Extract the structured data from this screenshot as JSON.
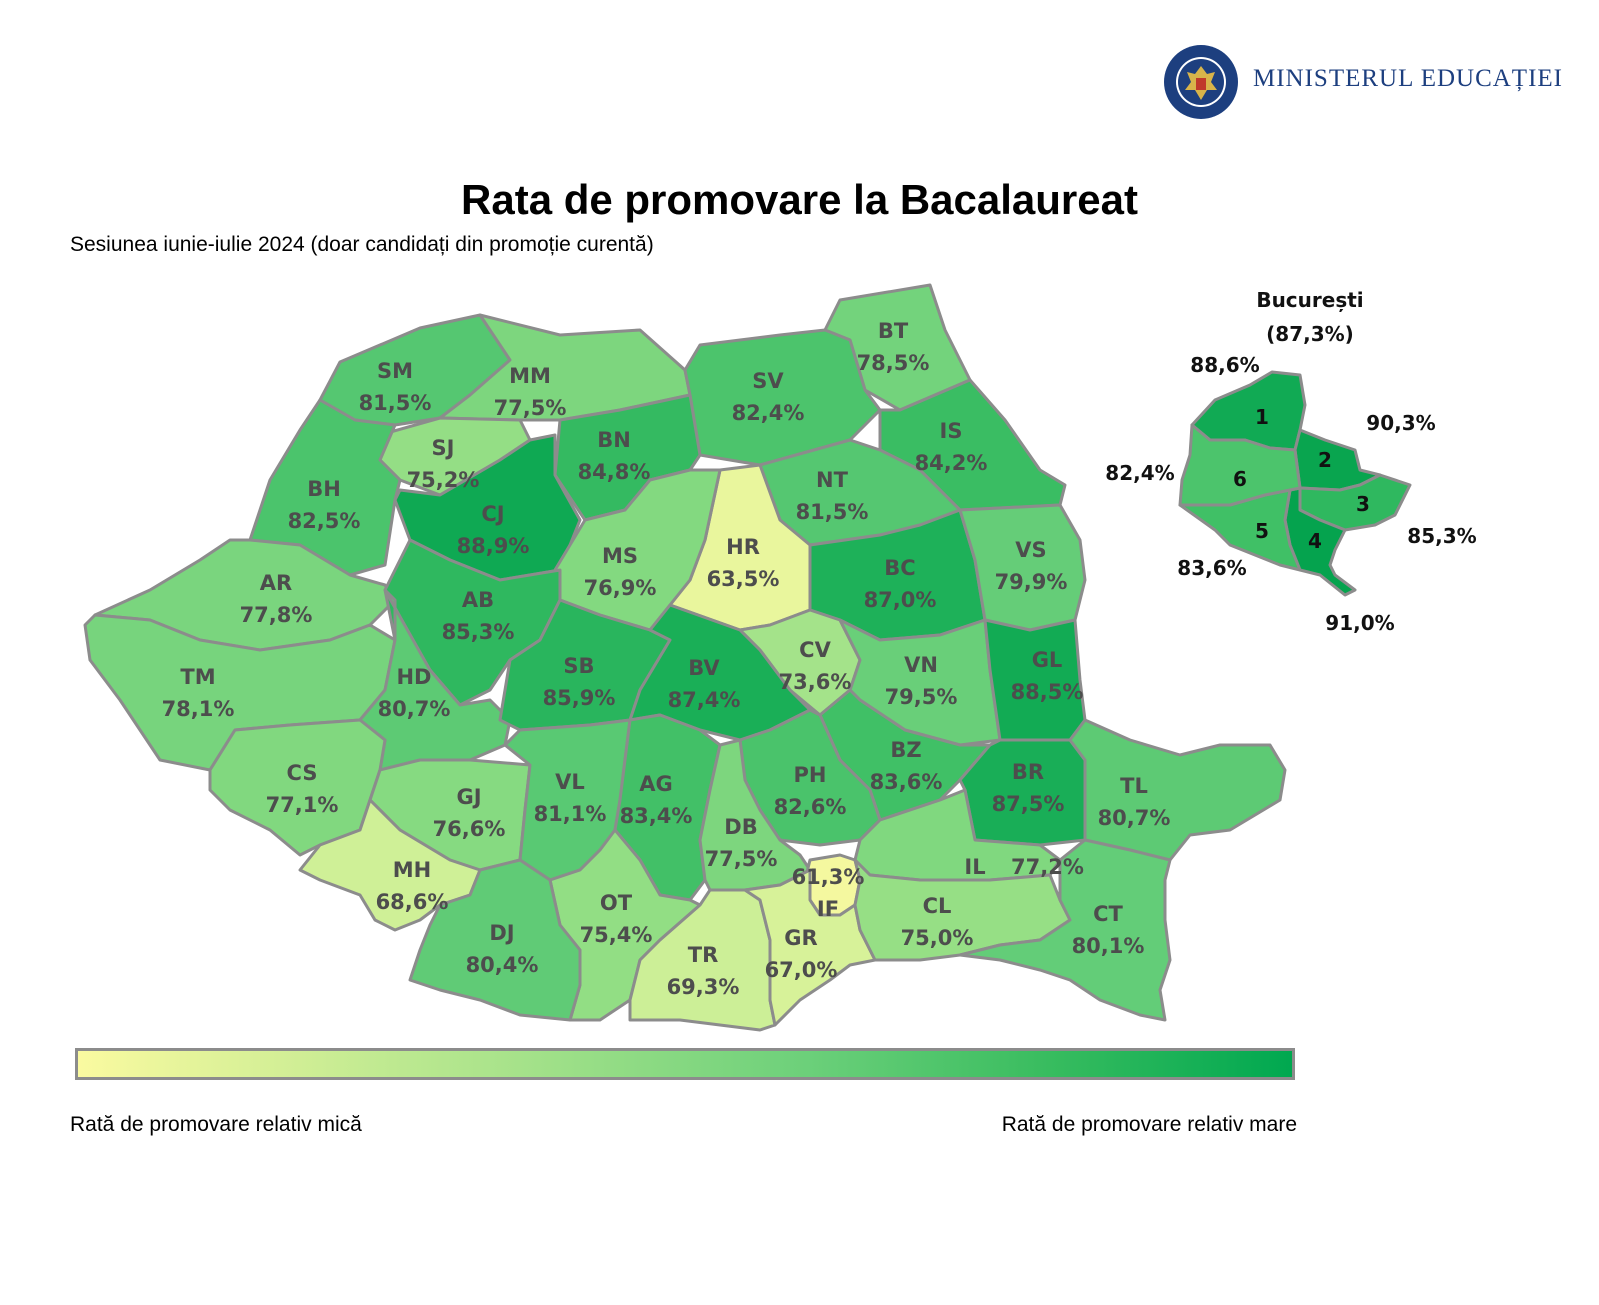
{
  "header": {
    "title": "Rata de promovare la Bacalaureat",
    "subtitle": "Sesiunea iunie-iulie 2024 (doar candidați din promoție curentă)"
  },
  "logo": {
    "text": "MINISTERUL EDUCAȚIEI",
    "seal_text": "GUVERNUL ROMÂNIEI"
  },
  "colors": {
    "low": "#fafaa0",
    "high": "#00a850",
    "border": "#8c8c8c"
  },
  "counties": [
    {
      "code": "SM",
      "value": "81,5%",
      "rate": 81.5
    },
    {
      "code": "MM",
      "value": "77,5%",
      "rate": 77.5
    },
    {
      "code": "BT",
      "value": "78,5%",
      "rate": 78.5
    },
    {
      "code": "SV",
      "value": "82,4%",
      "rate": 82.4
    },
    {
      "code": "SJ",
      "value": "75,2%",
      "rate": 75.2
    },
    {
      "code": "BN",
      "value": "84,8%",
      "rate": 84.8
    },
    {
      "code": "IS",
      "value": "84,2%",
      "rate": 84.2
    },
    {
      "code": "BH",
      "value": "82,5%",
      "rate": 82.5
    },
    {
      "code": "CJ",
      "value": "88,9%",
      "rate": 88.9
    },
    {
      "code": "NT",
      "value": "81,5%",
      "rate": 81.5
    },
    {
      "code": "HR",
      "value": "63,5%",
      "rate": 63.5
    },
    {
      "code": "MS",
      "value": "76,9%",
      "rate": 76.9
    },
    {
      "code": "BC",
      "value": "87,0%",
      "rate": 87.0
    },
    {
      "code": "VS",
      "value": "79,9%",
      "rate": 79.9
    },
    {
      "code": "AR",
      "value": "77,8%",
      "rate": 77.8
    },
    {
      "code": "AB",
      "value": "85,3%",
      "rate": 85.3
    },
    {
      "code": "CV",
      "value": "73,6%",
      "rate": 73.6
    },
    {
      "code": "VN",
      "value": "79,5%",
      "rate": 79.5
    },
    {
      "code": "GL",
      "value": "88,5%",
      "rate": 88.5
    },
    {
      "code": "TM",
      "value": "78,1%",
      "rate": 78.1
    },
    {
      "code": "HD",
      "value": "80,7%",
      "rate": 80.7
    },
    {
      "code": "SB",
      "value": "85,9%",
      "rate": 85.9
    },
    {
      "code": "BV",
      "value": "87,4%",
      "rate": 87.4
    },
    {
      "code": "BZ",
      "value": "83,6%",
      "rate": 83.6
    },
    {
      "code": "BR",
      "value": "87,5%",
      "rate": 87.5
    },
    {
      "code": "TL",
      "value": "80,7%",
      "rate": 80.7
    },
    {
      "code": "CS",
      "value": "77,1%",
      "rate": 77.1
    },
    {
      "code": "GJ",
      "value": "76,6%",
      "rate": 76.6
    },
    {
      "code": "VL",
      "value": "81,1%",
      "rate": 81.1
    },
    {
      "code": "AG",
      "value": "83,4%",
      "rate": 83.4
    },
    {
      "code": "PH",
      "value": "82,6%",
      "rate": 82.6
    },
    {
      "code": "DB",
      "value": "77,5%",
      "rate": 77.5
    },
    {
      "code": "IL",
      "value": "77,2%",
      "rate": 77.2
    },
    {
      "code": "MH",
      "value": "68,6%",
      "rate": 68.6
    },
    {
      "code": "IF",
      "value": "61,3%",
      "rate": 61.3
    },
    {
      "code": "OT",
      "value": "75,4%",
      "rate": 75.4
    },
    {
      "code": "DJ",
      "value": "80,4%",
      "rate": 80.4
    },
    {
      "code": "TR",
      "value": "69,3%",
      "rate": 69.3
    },
    {
      "code": "GR",
      "value": "67,0%",
      "rate": 67.0
    },
    {
      "code": "CL",
      "value": "75,0%",
      "rate": 75.0
    },
    {
      "code": "CT",
      "value": "80,1%",
      "rate": 80.1
    }
  ],
  "bucuresti": {
    "name": "București",
    "total": "(87,3%)",
    "sectors": [
      {
        "number": "1",
        "value": "88,6%",
        "rate": 88.6
      },
      {
        "number": "2",
        "value": "90,3%",
        "rate": 90.3
      },
      {
        "number": "3",
        "value": "85,3%",
        "rate": 85.3
      },
      {
        "number": "4",
        "value": "91,0%",
        "rate": 91.0
      },
      {
        "number": "5",
        "value": "83,6%",
        "rate": 83.6
      },
      {
        "number": "6",
        "value": "82,4%",
        "rate": 82.4
      }
    ]
  },
  "legend": {
    "low_label": "Rată de promovare relativ mică",
    "high_label": "Rată de promovare relativ mare"
  }
}
